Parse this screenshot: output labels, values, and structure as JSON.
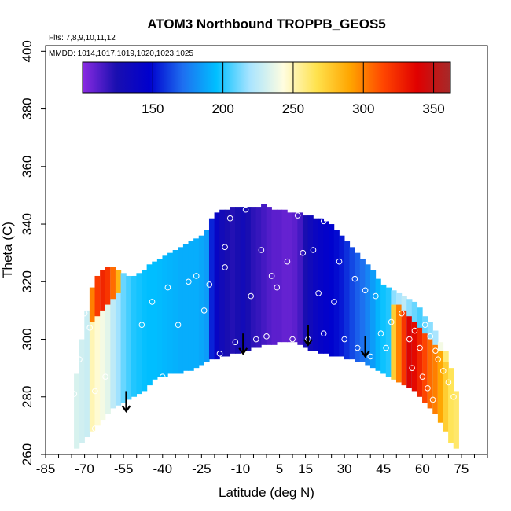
{
  "chart_data": {
    "type": "heatmap",
    "title": "ATOM3 Northbound TROPPB_GEOS5",
    "flights_note": "Flts: 7,8,9,10,11,12",
    "dates_note": "MMDD: 1014,1017,1019,1020,1023,1025",
    "xlabel": "Latitude (deg N)",
    "ylabel": "Theta (C)",
    "xlim": [
      -85,
      85
    ],
    "ylim": [
      260,
      402
    ],
    "x_ticks": [
      -85,
      -70,
      -55,
      -40,
      -25,
      -10,
      5,
      15,
      30,
      45,
      60,
      75
    ],
    "x_minor_step": 5,
    "y_ticks": [
      260,
      280,
      300,
      320,
      340,
      360,
      380,
      400
    ],
    "colorbar": {
      "min": 100,
      "max": 362,
      "ticks": [
        150,
        200,
        250,
        300,
        350
      ],
      "colors": [
        "#8b2be2",
        "#1a0fb0",
        "#0000cd",
        "#1e6ff0",
        "#00bfff",
        "#a8e4ff",
        "#fffde0",
        "#ffe24d",
        "#ffa500",
        "#ff4500",
        "#e00000",
        "#a52a2a"
      ]
    },
    "columns": [
      {
        "lat": -73,
        "bot": 262,
        "top": 288,
        "value": 232
      },
      {
        "lat": -71,
        "bot": 264,
        "top": 300,
        "value": 230
      },
      {
        "lat": -69,
        "bot": 266,
        "top": 310,
        "value": 228
      },
      {
        "lat": -67,
        "bot": 268,
        "top": 318,
        "value": 250,
        "hot_bot": 306,
        "hot_value": 300
      },
      {
        "lat": -65,
        "bot": 270,
        "top": 322,
        "value": 245,
        "hot_bot": 308,
        "hot_value": 318
      },
      {
        "lat": -63,
        "bot": 272,
        "top": 324,
        "value": 240,
        "hot_bot": 310,
        "hot_value": 325
      },
      {
        "lat": -61,
        "bot": 274,
        "top": 325,
        "value": 235,
        "hot_bot": 312,
        "hot_value": 320
      },
      {
        "lat": -59,
        "bot": 276,
        "top": 325,
        "value": 225,
        "hot_bot": 314,
        "hot_value": 305
      },
      {
        "lat": -57,
        "bot": 277,
        "top": 324,
        "value": 218,
        "hot_bot": 316,
        "hot_value": 285
      },
      {
        "lat": -55,
        "bot": 278,
        "top": 323,
        "value": 210
      },
      {
        "lat": -53,
        "bot": 279,
        "top": 322,
        "value": 205
      },
      {
        "lat": -51,
        "bot": 280,
        "top": 322,
        "value": 200
      },
      {
        "lat": -49,
        "bot": 281,
        "top": 323,
        "value": 198
      },
      {
        "lat": -47,
        "bot": 282,
        "top": 324,
        "value": 196
      },
      {
        "lat": -45,
        "bot": 284,
        "top": 326,
        "value": 195
      },
      {
        "lat": -43,
        "bot": 286,
        "top": 327,
        "value": 195
      },
      {
        "lat": -41,
        "bot": 287,
        "top": 328,
        "value": 194
      },
      {
        "lat": -39,
        "bot": 287,
        "top": 329,
        "value": 193
      },
      {
        "lat": -37,
        "bot": 288,
        "top": 330,
        "value": 192
      },
      {
        "lat": -35,
        "bot": 288,
        "top": 331,
        "value": 191
      },
      {
        "lat": -33,
        "bot": 288,
        "top": 332,
        "value": 190
      },
      {
        "lat": -31,
        "bot": 289,
        "top": 333,
        "value": 190
      },
      {
        "lat": -29,
        "bot": 289,
        "top": 334,
        "value": 190
      },
      {
        "lat": -27,
        "bot": 290,
        "top": 335,
        "value": 190
      },
      {
        "lat": -25,
        "bot": 291,
        "top": 336,
        "value": 188
      },
      {
        "lat": -23,
        "bot": 292,
        "top": 338,
        "value": 185
      },
      {
        "lat": -21,
        "bot": 293,
        "top": 342,
        "value": 155
      },
      {
        "lat": -19,
        "bot": 293,
        "top": 344,
        "value": 140
      },
      {
        "lat": -17,
        "bot": 294,
        "top": 345,
        "value": 130
      },
      {
        "lat": -15,
        "bot": 294,
        "top": 345,
        "value": 125
      },
      {
        "lat": -13,
        "bot": 295,
        "top": 346,
        "value": 122
      },
      {
        "lat": -11,
        "bot": 295,
        "top": 346,
        "value": 125
      },
      {
        "lat": -9,
        "bot": 296,
        "top": 346,
        "value": 130
      },
      {
        "lat": -7,
        "bot": 296,
        "top": 346,
        "value": 125
      },
      {
        "lat": -5,
        "bot": 297,
        "top": 346,
        "value": 120
      },
      {
        "lat": -3,
        "bot": 297,
        "top": 346,
        "value": 118
      },
      {
        "lat": -1,
        "bot": 298,
        "top": 347,
        "value": 115
      },
      {
        "lat": 1,
        "bot": 298,
        "top": 346,
        "value": 112
      },
      {
        "lat": 3,
        "bot": 298,
        "top": 345,
        "value": 110
      },
      {
        "lat": 5,
        "bot": 299,
        "top": 345,
        "value": 110
      },
      {
        "lat": 7,
        "bot": 299,
        "top": 345,
        "value": 108
      },
      {
        "lat": 9,
        "bot": 299,
        "top": 344,
        "value": 108
      },
      {
        "lat": 11,
        "bot": 299,
        "top": 344,
        "value": 110
      },
      {
        "lat": 13,
        "bot": 298,
        "top": 344,
        "value": 115
      },
      {
        "lat": 15,
        "bot": 297,
        "top": 343,
        "value": 125
      },
      {
        "lat": 17,
        "bot": 296,
        "top": 343,
        "value": 132
      },
      {
        "lat": 19,
        "bot": 296,
        "top": 342,
        "value": 138
      },
      {
        "lat": 21,
        "bot": 295,
        "top": 342,
        "value": 142
      },
      {
        "lat": 23,
        "bot": 295,
        "top": 341,
        "value": 145
      },
      {
        "lat": 25,
        "bot": 294,
        "top": 340,
        "value": 148
      },
      {
        "lat": 27,
        "bot": 294,
        "top": 338,
        "value": 150
      },
      {
        "lat": 29,
        "bot": 294,
        "top": 336,
        "value": 153
      },
      {
        "lat": 31,
        "bot": 293,
        "top": 334,
        "value": 158
      },
      {
        "lat": 33,
        "bot": 293,
        "top": 332,
        "value": 163
      },
      {
        "lat": 35,
        "bot": 292,
        "top": 330,
        "value": 168
      },
      {
        "lat": 37,
        "bot": 292,
        "top": 328,
        "value": 172
      },
      {
        "lat": 39,
        "bot": 291,
        "top": 326,
        "value": 178
      },
      {
        "lat": 41,
        "bot": 290,
        "top": 324,
        "value": 185
      },
      {
        "lat": 43,
        "bot": 289,
        "top": 321,
        "value": 192
      },
      {
        "lat": 45,
        "bot": 288,
        "top": 319,
        "value": 197
      },
      {
        "lat": 47,
        "bot": 287,
        "top": 318,
        "value": 200
      },
      {
        "lat": 49,
        "bot": 286,
        "top": 317,
        "value": 215,
        "hot_bot": 286,
        "hot_top": 312,
        "hot_value": 275
      },
      {
        "lat": 51,
        "bot": 285,
        "top": 316,
        "value": 220,
        "hot_bot": 285,
        "hot_top": 312,
        "hot_value": 300
      },
      {
        "lat": 53,
        "bot": 284,
        "top": 315,
        "value": 225,
        "hot_bot": 284,
        "hot_top": 310,
        "hot_value": 320
      },
      {
        "lat": 55,
        "bot": 283,
        "top": 314,
        "value": 215,
        "hot_bot": 283,
        "hot_top": 308,
        "hot_value": 340
      },
      {
        "lat": 57,
        "bot": 282,
        "top": 313,
        "value": 210,
        "hot_bot": 282,
        "hot_top": 306,
        "hot_value": 335
      },
      {
        "lat": 59,
        "bot": 280,
        "top": 311,
        "value": 205,
        "hot_bot": 280,
        "hot_top": 304,
        "hot_value": 325
      },
      {
        "lat": 61,
        "bot": 278,
        "top": 308,
        "value": 210,
        "hot_bot": 278,
        "hot_top": 302,
        "hot_value": 315
      },
      {
        "lat": 63,
        "bot": 276,
        "top": 306,
        "value": 215,
        "hot_bot": 276,
        "hot_top": 300,
        "hot_value": 305
      },
      {
        "lat": 65,
        "bot": 274,
        "top": 303,
        "value": 220,
        "hot_bot": 274,
        "hot_top": 298,
        "hot_value": 300
      },
      {
        "lat": 67,
        "bot": 271,
        "top": 299,
        "value": 240,
        "hot_bot": 271,
        "hot_top": 296,
        "hot_value": 290
      },
      {
        "lat": 69,
        "bot": 268,
        "top": 296,
        "value": 260,
        "hot_bot": 268,
        "hot_top": 292,
        "hot_value": 275
      },
      {
        "lat": 71,
        "bot": 264,
        "top": 290,
        "value": 265
      },
      {
        "lat": 73,
        "bot": 262,
        "top": 282,
        "value": 262
      }
    ],
    "arrows": [
      {
        "lat": -54,
        "theta": 275
      },
      {
        "lat": -9,
        "theta": 295
      },
      {
        "lat": 16,
        "theta": 298
      },
      {
        "lat": 38,
        "theta": 294
      }
    ],
    "points": [
      [
        -70,
        309
      ],
      [
        -68,
        304
      ],
      [
        -72,
        293
      ],
      [
        -74,
        281
      ],
      [
        -66,
        282
      ],
      [
        -62,
        287
      ],
      [
        -59,
        271
      ],
      [
        -66,
        269
      ],
      [
        -70,
        263
      ],
      [
        -52,
        323
      ],
      [
        -48,
        305
      ],
      [
        -44,
        313
      ],
      [
        -38,
        318
      ],
      [
        -34,
        305
      ],
      [
        -30,
        320
      ],
      [
        -27,
        322
      ],
      [
        -22,
        319
      ],
      [
        -18,
        295
      ],
      [
        -12,
        299
      ],
      [
        -40,
        287
      ],
      [
        -28,
        285
      ],
      [
        -24,
        310
      ],
      [
        -16,
        332
      ],
      [
        -14,
        342
      ],
      [
        -8,
        345
      ],
      [
        -2,
        331
      ],
      [
        2,
        322
      ],
      [
        -6,
        315
      ],
      [
        -16,
        325
      ],
      [
        4,
        318
      ],
      [
        8,
        327
      ],
      [
        12,
        343
      ],
      [
        14,
        330
      ],
      [
        18,
        331
      ],
      [
        20,
        316
      ],
      [
        22,
        341
      ],
      [
        26,
        313
      ],
      [
        28,
        327
      ],
      [
        34,
        321
      ],
      [
        38,
        317
      ],
      [
        42,
        315
      ],
      [
        44,
        302
      ],
      [
        46,
        297
      ],
      [
        48,
        306
      ],
      [
        52,
        309
      ],
      [
        55,
        300
      ],
      [
        57,
        303
      ],
      [
        59,
        297
      ],
      [
        61,
        305
      ],
      [
        63,
        301
      ],
      [
        65,
        296
      ],
      [
        66,
        293
      ],
      [
        68,
        289
      ],
      [
        70,
        285
      ],
      [
        60,
        287
      ],
      [
        56,
        290
      ],
      [
        62,
        283
      ],
      [
        64,
        279
      ],
      [
        58,
        277
      ],
      [
        72,
        280
      ],
      [
        16,
        300
      ],
      [
        22,
        302
      ],
      [
        30,
        300
      ],
      [
        35,
        297
      ],
      [
        40,
        294
      ],
      [
        -4,
        300
      ],
      [
        0,
        301
      ],
      [
        10,
        300
      ]
    ]
  }
}
